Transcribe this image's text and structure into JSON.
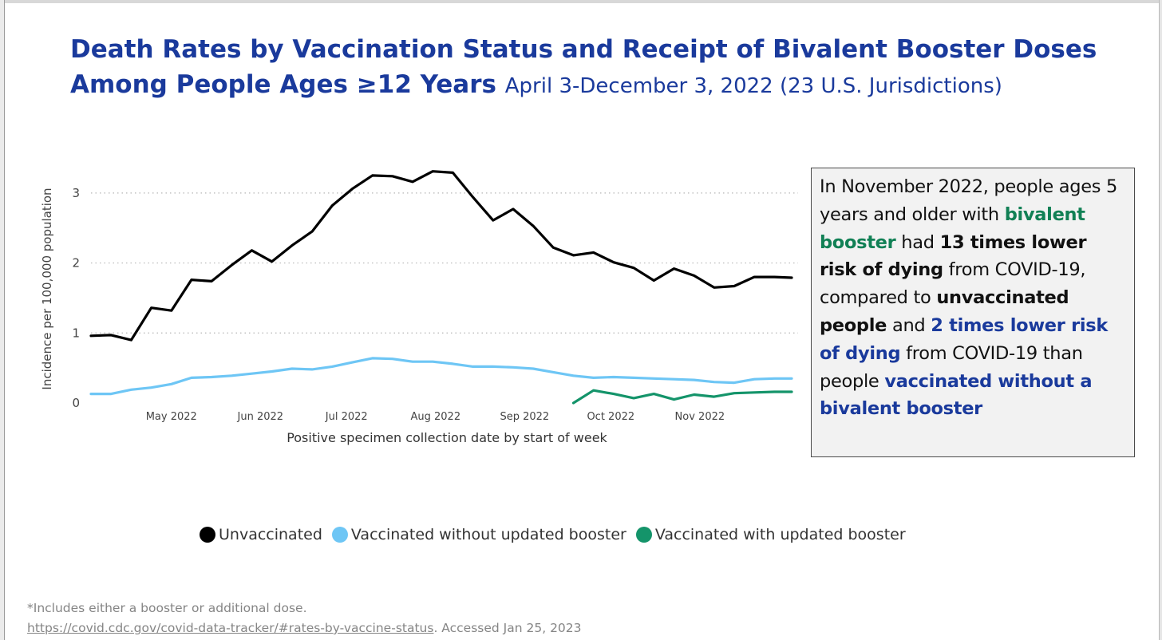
{
  "title": {
    "line1": "Death Rates by Vaccination Status and Receipt of Bivalent Booster Doses",
    "line2_main": "Among People Ages ≥12 Years",
    "line2_sub": "April 3-December 3, 2022 (23 U.S. Jurisdictions)"
  },
  "callout": {
    "t1": "In November 2022, people ages 5 years and older with",
    "t2": "bivalent booster",
    "t3": "had",
    "t4": "13 times lower risk of dying",
    "t5": "from COVID-19, compared to",
    "t6": "unvaccinated people",
    "t7": "and",
    "t8": "2 times lower risk of dying",
    "t9": "from COVID-19 than people",
    "t10": "vaccinated without a bivalent booster"
  },
  "footnote": {
    "note": "*Includes either a booster or additional dose.",
    "link": "https://covid.cdc.gov/covid-data-tracker/#rates-by-vaccine-status",
    "accessed": ". Accessed Jan 25, 2023"
  },
  "colors": {
    "title": "#1a3a9c",
    "unvaccinated": "#000000",
    "vaccinated_without": "#6ec6f5",
    "vaccinated_with": "#14946a",
    "green_text": "#118055"
  },
  "chart_data": {
    "type": "line",
    "xlabel": "Positive specimen collection date by start of week",
    "ylabel": "Incidence per 100,000 population",
    "ylim": [
      0,
      3.5
    ],
    "yticks": [
      0,
      1,
      2,
      3
    ],
    "grid": true,
    "legend_position": "bottom",
    "x": [
      "2022-04-03",
      "2022-04-10",
      "2022-04-17",
      "2022-04-24",
      "2022-05-01",
      "2022-05-08",
      "2022-05-15",
      "2022-05-22",
      "2022-05-29",
      "2022-06-05",
      "2022-06-12",
      "2022-06-19",
      "2022-06-26",
      "2022-07-03",
      "2022-07-10",
      "2022-07-17",
      "2022-07-24",
      "2022-07-31",
      "2022-08-07",
      "2022-08-14",
      "2022-08-21",
      "2022-08-28",
      "2022-09-04",
      "2022-09-11",
      "2022-09-18",
      "2022-09-25",
      "2022-10-02",
      "2022-10-09",
      "2022-10-16",
      "2022-10-23",
      "2022-10-30",
      "2022-11-06",
      "2022-11-13",
      "2022-11-20",
      "2022-11-27",
      "2022-12-03"
    ],
    "x_tick_labels": [
      "May 2022",
      "Jun 2022",
      "Jul 2022",
      "Aug 2022",
      "Sep 2022",
      "Oct 2022",
      "Nov 2022"
    ],
    "x_tick_dates": [
      "2022-05-01",
      "2022-06-01",
      "2022-07-01",
      "2022-08-01",
      "2022-09-01",
      "2022-10-01",
      "2022-11-01"
    ],
    "series": [
      {
        "name": "Unvaccinated",
        "color": "#000000",
        "values": [
          0.96,
          0.97,
          0.9,
          1.36,
          1.32,
          1.76,
          1.74,
          1.97,
          2.18,
          2.02,
          2.25,
          2.45,
          2.82,
          3.06,
          3.25,
          3.24,
          3.16,
          3.31,
          3.29,
          2.94,
          2.61,
          2.77,
          2.53,
          2.22,
          2.11,
          2.15,
          2.01,
          1.93,
          1.75,
          1.92,
          1.82,
          1.65,
          1.67,
          1.8,
          1.8,
          1.79
        ]
      },
      {
        "name": "Vaccinated without updated booster",
        "color": "#6ec6f5",
        "values": [
          0.13,
          0.13,
          0.19,
          0.22,
          0.27,
          0.36,
          0.37,
          0.39,
          0.42,
          0.45,
          0.49,
          0.48,
          0.52,
          0.58,
          0.64,
          0.63,
          0.59,
          0.59,
          0.56,
          0.52,
          0.52,
          0.51,
          0.49,
          0.44,
          0.39,
          0.36,
          0.37,
          0.36,
          0.35,
          0.34,
          0.33,
          0.3,
          0.29,
          0.34,
          0.35,
          0.35
        ]
      },
      {
        "name": "Vaccinated with updated booster",
        "color": "#14946a",
        "values": [
          null,
          null,
          null,
          null,
          null,
          null,
          null,
          null,
          null,
          null,
          null,
          null,
          null,
          null,
          null,
          null,
          null,
          null,
          null,
          null,
          null,
          null,
          null,
          null,
          0.0,
          0.18,
          0.13,
          0.07,
          0.13,
          0.05,
          0.12,
          0.09,
          0.14,
          0.15,
          0.16,
          0.16
        ]
      }
    ]
  }
}
